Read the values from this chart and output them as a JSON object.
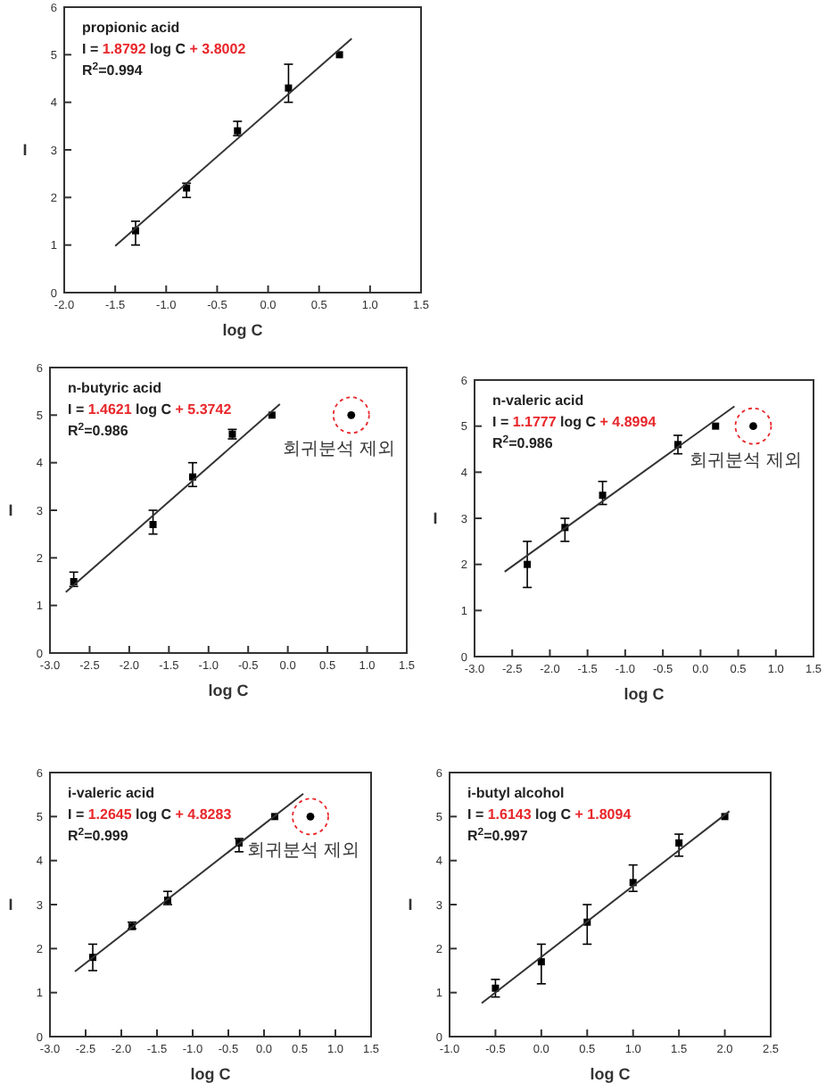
{
  "chart_data": [
    {
      "type": "scatter",
      "xlabel": "log C",
      "ylabel": "I",
      "annotations": [
        "propionic acid",
        "I = 1.8792 log C + 3.8002",
        "R$^{2}$=0.994"
      ],
      "xlim": [
        -2,
        1.5
      ],
      "xticks": [
        {
          "value": -2,
          "label": "-2.0"
        },
        {
          "value": -1.5,
          "label": "-1.5"
        },
        {
          "value": -1,
          "label": "-1.0"
        },
        {
          "value": -0.5,
          "label": "-0.5"
        },
        {
          "value": 0,
          "label": "0.0"
        },
        {
          "value": 0.5,
          "label": "0.5"
        },
        {
          "value": 1,
          "label": "1.0"
        },
        {
          "value": 1.5,
          "label": "1.5"
        }
      ],
      "ylim": [
        0,
        6
      ],
      "yticks": [
        0,
        1,
        2,
        3,
        4,
        5,
        6
      ],
      "series": [
        {
          "marker": "square",
          "color": "#000000",
          "x": [
            -1.3,
            -0.8,
            -0.3,
            0.2,
            0.7
          ],
          "values": [
            1.3,
            2.2,
            3.4,
            4.3,
            5.0
          ],
          "errors": [
            [
              1.0,
              1.5
            ],
            [
              2.0,
              2.3
            ],
            [
              3.3,
              3.6
            ],
            [
              4.0,
              4.8
            ],
            null
          ]
        },
        {
          "type": "line",
          "marker": "none",
          "color": "#333333",
          "x": [
            -1.5,
            0.82
          ],
          "values": [
            0.98,
            5.34
          ]
        }
      ]
    },
    {
      "type": "scatter",
      "xlabel": "log C",
      "ylabel": "I",
      "annotations": [
        "n-butyric acid",
        "I = 1.4621 log C + 5.3742",
        "R$^{2}$=0.986",
        {
          "text": "회귀분석 제외",
          "x": 0.8,
          "y": 5.0
        }
      ],
      "xlim": [
        -3,
        1.5
      ],
      "xticks": [
        {
          "value": -3,
          "label": "-3.0"
        },
        {
          "value": -2.5,
          "label": "-2.5"
        },
        {
          "value": -2,
          "label": "-2.0"
        },
        {
          "value": -1.5,
          "label": "-1.5"
        },
        {
          "value": -1,
          "label": "-1.0"
        },
        {
          "value": -0.5,
          "label": "-0.5"
        },
        {
          "value": 0,
          "label": "0.0"
        },
        {
          "value": 0.5,
          "label": "0.5"
        },
        {
          "value": 1,
          "label": "1.0"
        },
        {
          "value": 1.5,
          "label": "1.5"
        }
      ],
      "ylim": [
        0,
        6
      ],
      "yticks": [
        0,
        1,
        2,
        3,
        4,
        5,
        6
      ],
      "series": [
        {
          "marker": "square",
          "color": "#000000",
          "x": [
            -2.7,
            -1.7,
            -1.2,
            -0.7,
            -0.2
          ],
          "values": [
            1.5,
            2.7,
            3.7,
            4.6,
            5.0
          ],
          "errors": [
            [
              1.4,
              1.7
            ],
            [
              2.5,
              3.0
            ],
            [
              3.5,
              4.0
            ],
            [
              4.5,
              4.7
            ],
            null
          ]
        },
        {
          "marker": "circle",
          "color": "#000000",
          "x": [
            0.8
          ],
          "values": [
            5.0
          ]
        },
        {
          "type": "line",
          "marker": "none",
          "color": "#333333",
          "x": [
            -2.8,
            -0.1
          ],
          "values": [
            1.28,
            5.23
          ]
        }
      ]
    },
    {
      "type": "scatter",
      "xlabel": "log C",
      "ylabel": "I",
      "annotations": [
        "n-valeric acid",
        "I = 1.1777 log C + 4.8994",
        "R$^{2}$=0.986",
        {
          "text": "회귀분석 제외",
          "x": 0.7,
          "y": 5.0
        }
      ],
      "xlim": [
        -3,
        1.5
      ],
      "xticks": [
        {
          "value": -3,
          "label": "-3.0"
        },
        {
          "value": -2.5,
          "label": "-2.5"
        },
        {
          "value": -2,
          "label": "-2.0"
        },
        {
          "value": -1.5,
          "label": "-1.5"
        },
        {
          "value": -1,
          "label": "-1.0"
        },
        {
          "value": -0.5,
          "label": "-0.5"
        },
        {
          "value": 0,
          "label": "0.0"
        },
        {
          "value": 0.5,
          "label": "0.5"
        },
        {
          "value": 1,
          "label": "1.0"
        },
        {
          "value": 1.5,
          "label": "1.5"
        }
      ],
      "ylim": [
        0,
        6
      ],
      "yticks": [
        0,
        1,
        2,
        3,
        4,
        5,
        6
      ],
      "series": [
        {
          "marker": "square",
          "color": "#000000",
          "x": [
            -2.3,
            -1.8,
            -1.3,
            -0.3,
            0.2
          ],
          "values": [
            2.0,
            2.8,
            3.5,
            4.6,
            5.0
          ],
          "errors": [
            [
              1.5,
              2.5
            ],
            [
              2.5,
              3.0
            ],
            [
              3.3,
              3.8
            ],
            [
              4.4,
              4.8
            ],
            null
          ]
        },
        {
          "marker": "circle",
          "color": "#000000",
          "x": [
            0.7
          ],
          "values": [
            5.0
          ]
        },
        {
          "type": "line",
          "marker": "none",
          "color": "#333333",
          "x": [
            -2.6,
            0.45
          ],
          "values": [
            1.84,
            5.43
          ]
        }
      ]
    },
    {
      "type": "scatter",
      "xlabel": "log C",
      "ylabel": "I",
      "annotations": [
        "i-valeric acid",
        "I = 1.2645 log C + 4.8283",
        "R$^{2}$=0.999",
        {
          "text": "회귀분석 제외",
          "x": 0.65,
          "y": 5.0
        }
      ],
      "xlim": [
        -3,
        1.5
      ],
      "xticks": [
        {
          "value": -3,
          "label": "-3.0"
        },
        {
          "value": -2.5,
          "label": "-2.5"
        },
        {
          "value": -2,
          "label": "-2.0"
        },
        {
          "value": -1.5,
          "label": "-1.5"
        },
        {
          "value": -1,
          "label": "-1.0"
        },
        {
          "value": -0.5,
          "label": "-0.5"
        },
        {
          "value": 0,
          "label": "0.0"
        },
        {
          "value": 0.5,
          "label": "0.5"
        },
        {
          "value": 1,
          "label": "1.0"
        },
        {
          "value": 1.5,
          "label": "1.5"
        }
      ],
      "ylim": [
        0,
        6
      ],
      "yticks": [
        0,
        1,
        2,
        3,
        4,
        5,
        6
      ],
      "series": [
        {
          "marker": "square",
          "color": "#000000",
          "x": [
            -2.4,
            -1.85,
            -1.35,
            -0.35,
            0.15
          ],
          "values": [
            1.8,
            2.5,
            3.1,
            4.4,
            5.0
          ],
          "errors": [
            [
              1.5,
              2.1
            ],
            [
              2.45,
              2.6
            ],
            [
              3.0,
              3.3
            ],
            [
              4.2,
              4.5
            ],
            null
          ]
        },
        {
          "marker": "circle",
          "color": "#000000",
          "x": [
            0.65
          ],
          "values": [
            5.0
          ]
        },
        {
          "type": "line",
          "marker": "none",
          "color": "#333333",
          "x": [
            -2.65,
            0.55
          ],
          "values": [
            1.48,
            5.52
          ]
        }
      ]
    },
    {
      "type": "scatter",
      "xlabel": "log C",
      "ylabel": "I",
      "annotations": [
        "i-butyl alcohol",
        "I = 1.6143 log C + 1.8094",
        "R$^{2}$=0.997"
      ],
      "xlim": [
        -1,
        2.5
      ],
      "xticks": [
        {
          "value": -1,
          "label": "-1.0"
        },
        {
          "value": -0.5,
          "label": "-0.5"
        },
        {
          "value": 0,
          "label": "0.0"
        },
        {
          "value": 0.5,
          "label": "0.5"
        },
        {
          "value": 1,
          "label": "1.0"
        },
        {
          "value": 1.5,
          "label": "1.5"
        },
        {
          "value": 2,
          "label": "2.0"
        },
        {
          "value": 2.5,
          "label": "2.5"
        }
      ],
      "ylim": [
        0,
        6
      ],
      "yticks": [
        0,
        1,
        2,
        3,
        4,
        5,
        6
      ],
      "series": [
        {
          "marker": "square",
          "color": "#000000",
          "x": [
            -0.5,
            0,
            0.5,
            1.0,
            1.5,
            2.0
          ],
          "values": [
            1.1,
            1.7,
            2.6,
            3.5,
            4.4,
            5.0
          ],
          "errors": [
            [
              0.9,
              1.3
            ],
            [
              1.2,
              2.1
            ],
            [
              2.1,
              3.0
            ],
            [
              3.3,
              3.9
            ],
            [
              4.1,
              4.6
            ],
            null
          ]
        },
        {
          "type": "line",
          "marker": "none",
          "color": "#333333",
          "x": [
            -0.65,
            2.05
          ],
          "values": [
            0.76,
            5.12
          ]
        }
      ]
    }
  ]
}
